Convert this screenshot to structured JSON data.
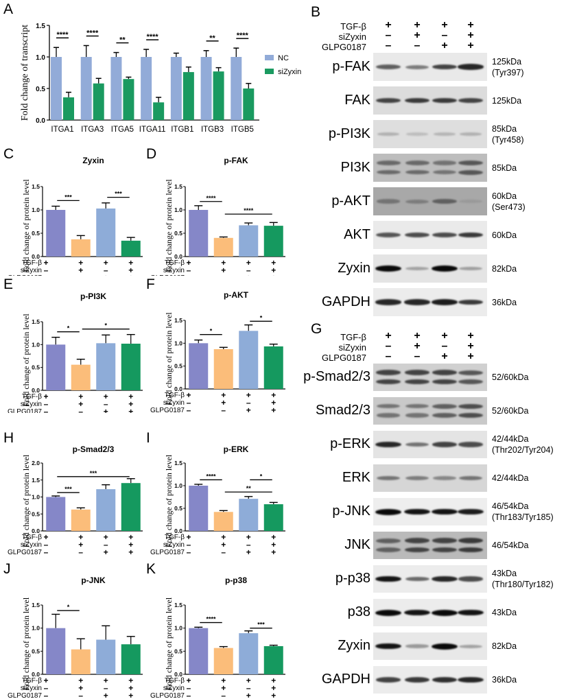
{
  "panels": {
    "A": "A",
    "B": "B",
    "C": "C",
    "D": "D",
    "E": "E",
    "F": "F",
    "G": "G",
    "H": "H",
    "I": "I",
    "J": "J",
    "K": "K"
  },
  "colors": {
    "nc": "#92abd8",
    "sizyxin": "#1a9a60",
    "g1": "#8587c8",
    "g2": "#fbbd7a",
    "g3": "#8eacd8",
    "g4": "#15995f"
  },
  "conditions": {
    "labels": [
      "TGF-β",
      "siZyxin",
      "GLPG0187"
    ],
    "rows": [
      [
        "+",
        "+",
        "+",
        "+"
      ],
      [
        "-",
        "+",
        "-",
        "+"
      ],
      [
        "-",
        "-",
        "+",
        "+"
      ]
    ]
  },
  "chart_data": [
    {
      "panel": "A",
      "type": "bar",
      "title": "",
      "xlabel": "",
      "ylabel": "Fold change of transcript",
      "ylim": [
        0,
        1.5
      ],
      "yticks": [
        "0.0",
        "0.5",
        "1.0",
        "1.5"
      ],
      "categories": [
        "ITGA1",
        "ITGA3",
        "ITGA5",
        "ITGA11",
        "ITGB1",
        "ITGB3",
        "ITGB5"
      ],
      "series": [
        {
          "name": "NC",
          "values": [
            1.0,
            1.0,
            1.0,
            1.0,
            1.0,
            1.0,
            1.0
          ],
          "errors": [
            0.15,
            0.18,
            0.07,
            0.12,
            0.06,
            0.1,
            0.14
          ]
        },
        {
          "name": "siZyxin",
          "values": [
            0.36,
            0.58,
            0.65,
            0.28,
            0.76,
            0.77,
            0.5
          ],
          "errors": [
            0.08,
            0.08,
            0.03,
            0.08,
            0.08,
            0.06,
            0.08
          ]
        }
      ],
      "significance": [
        "****",
        "****",
        "**",
        "****",
        "",
        "**",
        "****"
      ],
      "legend": [
        "NC",
        "siZyxin"
      ],
      "legend_position": "right"
    },
    {
      "panel": "C",
      "type": "bar",
      "title": "Zyxin",
      "ylabel": "Fold change of protein level",
      "ylim": [
        0,
        1.5
      ],
      "yticks": [
        "0.0",
        "0.5",
        "1.0",
        "1.5"
      ],
      "categories": [
        "TGF-β",
        "TGF-β+siZyxin",
        "TGF-β+GLPG0187",
        "TGF-β+siZyxin+GLPG0187"
      ],
      "values": [
        1.0,
        0.37,
        1.03,
        0.34
      ],
      "errors": [
        0.08,
        0.08,
        0.12,
        0.07
      ],
      "annotations": [
        {
          "from": 0,
          "to": 1,
          "label": "***",
          "y": 1.2
        },
        {
          "from": 2,
          "to": 3,
          "label": "***",
          "y": 1.27
        }
      ]
    },
    {
      "panel": "D",
      "type": "bar",
      "title": "p-FAK",
      "ylabel": "Fold change of protein level",
      "ylim": [
        0,
        1.5
      ],
      "yticks": [
        "0.0",
        "0.5",
        "1.0",
        "1.5"
      ],
      "categories": [
        "TGF-β",
        "TGF-β+siZyxin",
        "TGF-β+GLPG0187",
        "TGF-β+siZyxin+GLPG0187"
      ],
      "values": [
        1.0,
        0.4,
        0.67,
        0.66
      ],
      "errors": [
        0.09,
        0.02,
        0.05,
        0.07
      ],
      "annotations": [
        {
          "from": 0,
          "to": 1,
          "label": "****",
          "y": 1.18
        },
        {
          "from": 1,
          "to": 3,
          "label": "****",
          "y": 0.91
        }
      ]
    },
    {
      "panel": "E",
      "type": "bar",
      "title": "p-PI3K",
      "ylabel": "Fold change of protein level",
      "ylim": [
        0,
        1.5
      ],
      "yticks": [
        "0.0",
        "0.5",
        "1.0",
        "1.5"
      ],
      "categories": [
        "TGF-β",
        "TGF-β+siZyxin",
        "TGF-β+GLPG0187",
        "TGF-β+siZyxin+GLPG0187"
      ],
      "values": [
        1.0,
        0.56,
        1.03,
        1.02
      ],
      "errors": [
        0.16,
        0.12,
        0.18,
        0.2
      ],
      "annotations": [
        {
          "from": 0,
          "to": 1,
          "label": "*",
          "y": 1.28
        },
        {
          "from": 1,
          "to": 3,
          "label": "*",
          "y": 1.34
        }
      ]
    },
    {
      "panel": "F",
      "type": "bar",
      "title": "p-AKT",
      "ylabel": "Fold change of protein level",
      "ylim": [
        0,
        1.5
      ],
      "yticks": [
        "0.0",
        "0.5",
        "1.0",
        "1.5"
      ],
      "categories": [
        "TGF-β",
        "TGF-β+siZyxin",
        "TGF-β+GLPG0187",
        "TGF-β+siZyxin+GLPG0187"
      ],
      "values": [
        1.0,
        0.87,
        1.27,
        0.93
      ],
      "errors": [
        0.07,
        0.04,
        0.13,
        0.05
      ],
      "annotations": [
        {
          "from": 0,
          "to": 1,
          "label": "*",
          "y": 1.19
        },
        {
          "from": 2,
          "to": 3,
          "label": "*",
          "y": 1.48
        }
      ]
    },
    {
      "panel": "H",
      "type": "bar",
      "title": "p-Smad2/3",
      "ylabel": "Fold change of protein level",
      "ylim": [
        0,
        2.0
      ],
      "yticks": [
        "0.0",
        "0.5",
        "1.0",
        "1.5",
        "2.0"
      ],
      "categories": [
        "TGF-β",
        "TGF-β+siZyxin",
        "TGF-β+GLPG0187",
        "TGF-β+siZyxin+GLPG0187"
      ],
      "values": [
        1.0,
        0.63,
        1.23,
        1.41
      ],
      "errors": [
        0.03,
        0.05,
        0.13,
        0.13
      ],
      "annotations": [
        {
          "from": 0,
          "to": 1,
          "label": "***",
          "y": 1.13
        },
        {
          "from": 0,
          "to": 3,
          "label": "***",
          "y": 1.6
        }
      ]
    },
    {
      "panel": "I",
      "type": "bar",
      "title": "p-ERK",
      "ylabel": "Fold change of protein level",
      "ylim": [
        0,
        1.5
      ],
      "yticks": [
        "0.0",
        "0.5",
        "1.0",
        "1.5"
      ],
      "categories": [
        "TGF-β",
        "TGF-β+siZyxin",
        "TGF-β+GLPG0187",
        "TGF-β+siZyxin+GLPG0187"
      ],
      "values": [
        1.0,
        0.42,
        0.71,
        0.59
      ],
      "errors": [
        0.03,
        0.03,
        0.05,
        0.04
      ],
      "annotations": [
        {
          "from": 0,
          "to": 1,
          "label": "****",
          "y": 1.13
        },
        {
          "from": 2,
          "to": 3,
          "label": "*",
          "y": 1.13
        },
        {
          "from": 1,
          "to": 3,
          "label": "**",
          "y": 0.86
        }
      ]
    },
    {
      "panel": "J",
      "type": "bar",
      "title": "p-JNK",
      "ylabel": "Fold change of protein level",
      "ylim": [
        0,
        1.5
      ],
      "yticks": [
        "0.0",
        "0.5",
        "1.0",
        "1.5"
      ],
      "categories": [
        "TGF-β",
        "TGF-β+siZyxin",
        "TGF-β+GLPG0187",
        "TGF-β+siZyxin+GLPG0187"
      ],
      "values": [
        1.0,
        0.54,
        0.75,
        0.65
      ],
      "errors": [
        0.3,
        0.23,
        0.3,
        0.17
      ],
      "annotations": [
        {
          "from": 0,
          "to": 1,
          "label": "*",
          "y": 1.38
        }
      ]
    },
    {
      "panel": "K",
      "type": "bar",
      "title": "p-p38",
      "ylabel": "Fold change of protein level",
      "ylim": [
        0,
        1.5
      ],
      "yticks": [
        "0.0",
        "0.5",
        "1.0",
        "1.5"
      ],
      "categories": [
        "TGF-β",
        "TGF-β+siZyxin",
        "TGF-β+GLPG0187",
        "TGF-β+siZyxin+GLPG0187"
      ],
      "values": [
        1.0,
        0.57,
        0.89,
        0.61
      ],
      "errors": [
        0.02,
        0.03,
        0.05,
        0.02
      ],
      "annotations": [
        {
          "from": 0,
          "to": 1,
          "label": "****",
          "y": 1.12
        },
        {
          "from": 2,
          "to": 3,
          "label": "***",
          "y": 1.0
        }
      ]
    }
  ],
  "blots": {
    "B": [
      {
        "protein": "p-FAK",
        "kda": "125kDa",
        "site": "(Tyr397)",
        "bg": "#e9e9e9",
        "intensity": [
          0.55,
          0.4,
          0.7,
          0.85
        ],
        "double": false
      },
      {
        "protein": "FAK",
        "kda": "125kDa",
        "site": "",
        "bg": "#dcdcdc",
        "intensity": [
          0.7,
          0.75,
          0.75,
          0.7
        ],
        "double": false
      },
      {
        "protein": "p-PI3K",
        "kda": "85kDa",
        "site": "(Tyr458)",
        "bg": "#dedede",
        "intensity": [
          0.12,
          0.06,
          0.1,
          0.12
        ],
        "double": false
      },
      {
        "protein": "PI3K",
        "kda": "85kDa",
        "site": "",
        "bg": "#bdbdbd",
        "intensity": [
          0.5,
          0.5,
          0.45,
          0.6
        ],
        "double": true
      },
      {
        "protein": "p-AKT",
        "kda": "60kDa",
        "site": "(Ser473)",
        "bg": "#a8a8a8",
        "intensity": [
          0.45,
          0.4,
          0.55,
          0.25
        ],
        "double": false
      },
      {
        "protein": "AKT",
        "kda": "60kDa",
        "site": "",
        "bg": "#eaeaea",
        "intensity": [
          0.6,
          0.65,
          0.65,
          0.75
        ],
        "double": false
      },
      {
        "protein": "Zyxin",
        "kda": "82kDa",
        "site": "",
        "bg": "#e4e4e4",
        "intensity": [
          1.0,
          0.2,
          1.0,
          0.22
        ],
        "double": false
      },
      {
        "protein": "GAPDH",
        "kda": "36kDa",
        "site": "",
        "bg": "#ececec",
        "intensity": [
          0.85,
          0.85,
          0.9,
          0.75
        ],
        "double": false
      }
    ],
    "G": [
      {
        "protein": "p-Smad2/3",
        "kda": "52/60kDa",
        "site": "",
        "bg": "#d0d0d0",
        "intensity": [
          0.7,
          0.7,
          0.7,
          0.6
        ],
        "double": true
      },
      {
        "protein": "Smad2/3",
        "kda": "52/60kDa",
        "site": "",
        "bg": "#c9c9c9",
        "intensity": [
          0.45,
          0.45,
          0.55,
          0.65
        ],
        "double": true
      },
      {
        "protein": "p-ERK",
        "kda": "42/44kDa",
        "site": "(Thr202/Tyr204)",
        "bg": "#e4e4e4",
        "intensity": [
          0.85,
          0.45,
          0.7,
          0.65
        ],
        "double": false
      },
      {
        "protein": "ERK",
        "kda": "42/44kDa",
        "site": "",
        "bg": "#d6d6d6",
        "intensity": [
          0.45,
          0.4,
          0.35,
          0.45
        ],
        "double": false
      },
      {
        "protein": "p-JNK",
        "kda": "46/54kDa",
        "site": "(Thr183/Tyr185)",
        "bg": "#eeeeee",
        "intensity": [
          1.0,
          0.95,
          0.95,
          0.9
        ],
        "double": false
      },
      {
        "protein": "JNK",
        "kda": "46/54kDa",
        "site": "",
        "bg": "#bababa",
        "intensity": [
          0.55,
          0.7,
          0.7,
          0.75
        ],
        "double": true
      },
      {
        "protein": "p-p38",
        "kda": "43kDa",
        "site": "(Thr180/Tyr182)",
        "bg": "#ececec",
        "intensity": [
          0.95,
          0.5,
          0.85,
          0.65
        ],
        "double": false
      },
      {
        "protein": "p38",
        "kda": "43kDa",
        "site": "",
        "bg": "#ececec",
        "intensity": [
          1.0,
          0.95,
          1.0,
          0.95
        ],
        "double": false
      },
      {
        "protein": "Zyxin",
        "kda": "82kDa",
        "site": "",
        "bg": "#e8e8e8",
        "intensity": [
          0.95,
          0.25,
          1.0,
          0.2
        ],
        "double": false
      },
      {
        "protein": "GAPDH",
        "kda": "36kDa",
        "site": "",
        "bg": "#ececec",
        "intensity": [
          0.7,
          0.75,
          0.8,
          0.85
        ],
        "double": false
      }
    ]
  }
}
